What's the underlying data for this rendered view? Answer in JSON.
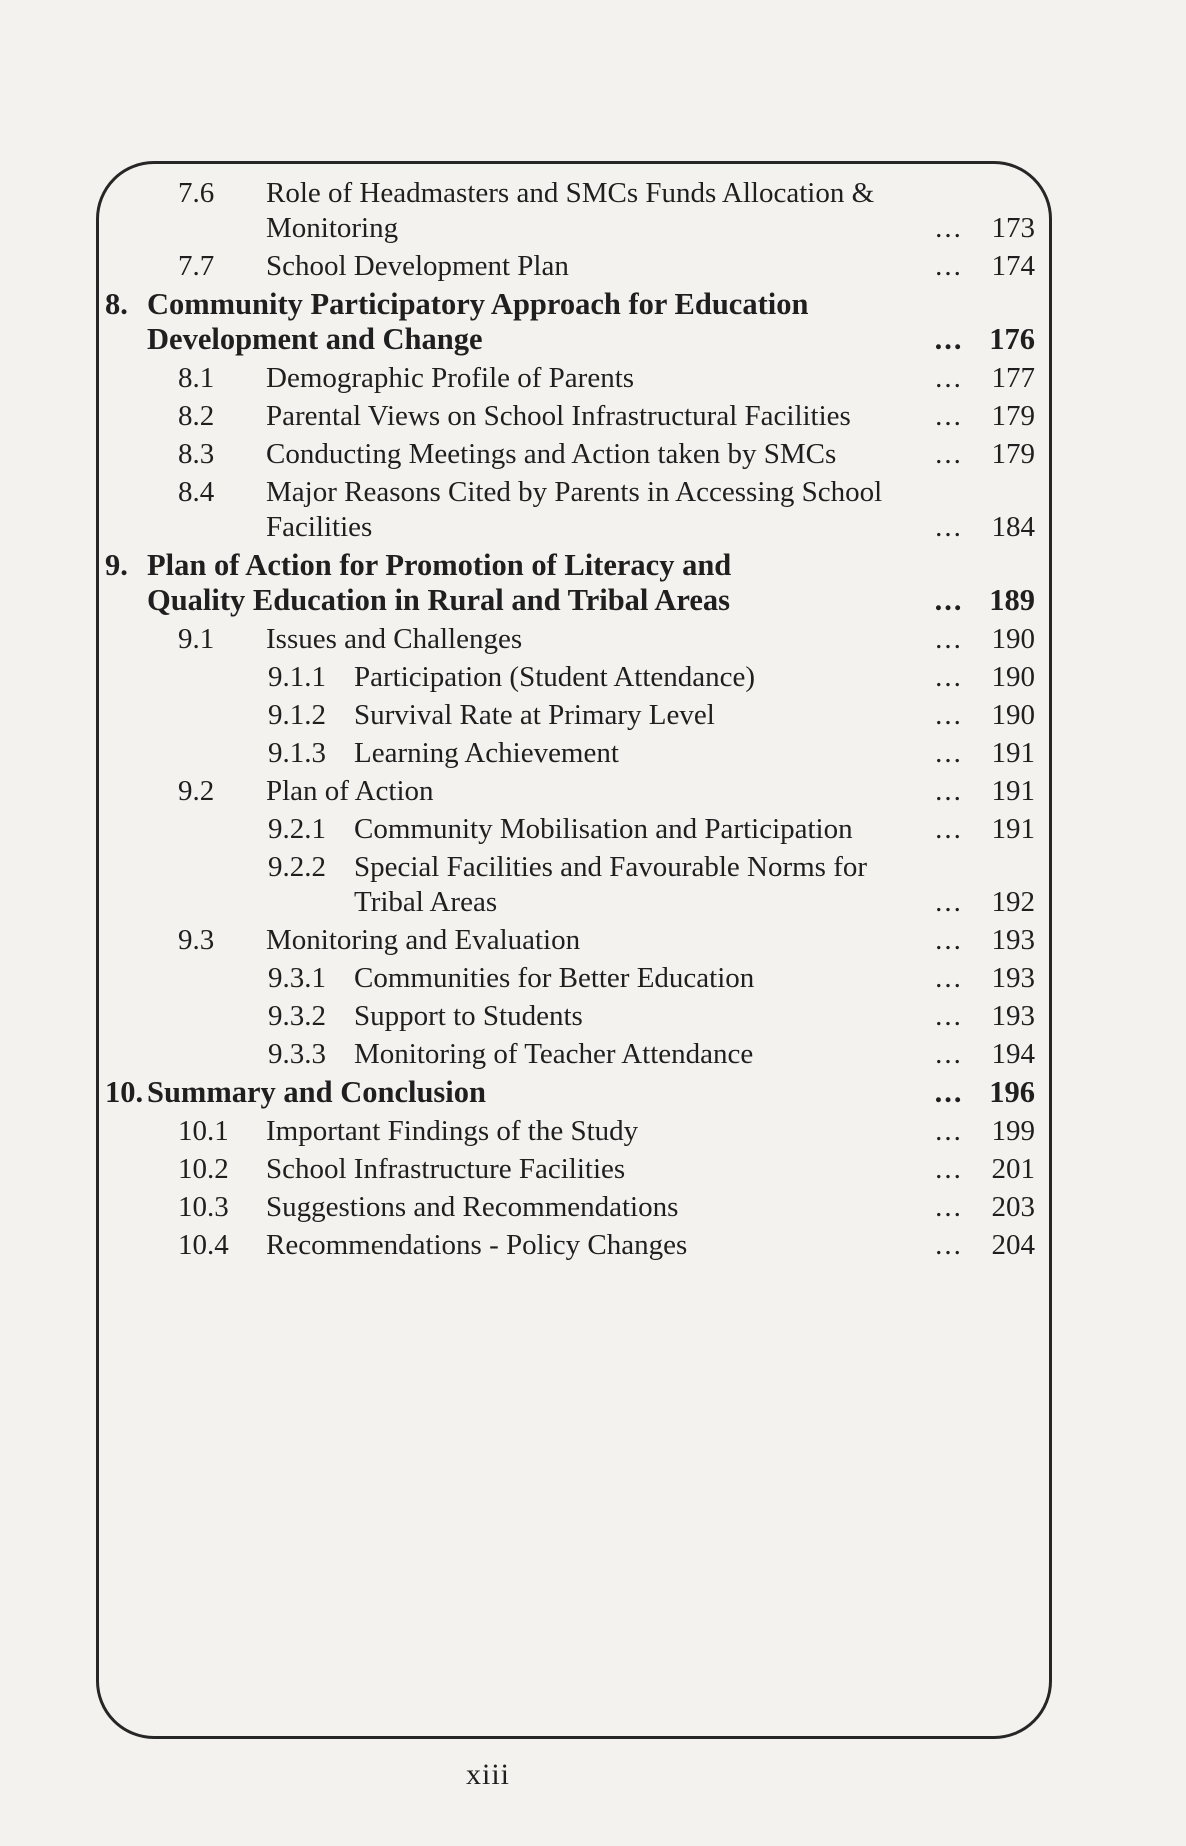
{
  "page": {
    "background": "#f3f2ef",
    "text_color": "#1f1f1f",
    "frame_border_color": "#262626",
    "footer": "xiii"
  },
  "toc": {
    "leader": "...",
    "entries": [
      {
        "level": 2,
        "num": "7.6",
        "bold": false,
        "lines": [
          "Role of Headmasters and SMCs Funds Allocation &",
          "Monitoring"
        ],
        "page": "173"
      },
      {
        "level": 2,
        "num": "7.7",
        "bold": false,
        "lines": [
          "School Development Plan"
        ],
        "page": "174"
      },
      {
        "level": 1,
        "num": "8.",
        "bold": true,
        "lines": [
          "Community Participatory Approach for Education",
          "Development and Change"
        ],
        "page": "176"
      },
      {
        "level": 2,
        "num": "8.1",
        "bold": false,
        "lines": [
          "Demographic Profile of Parents"
        ],
        "page": "177"
      },
      {
        "level": 2,
        "num": "8.2",
        "bold": false,
        "lines": [
          "Parental Views on School Infrastructural Facilities"
        ],
        "page": "179"
      },
      {
        "level": 2,
        "num": "8.3",
        "bold": false,
        "lines": [
          "Conducting Meetings and Action taken by SMCs"
        ],
        "page": "179"
      },
      {
        "level": 2,
        "num": "8.4",
        "bold": false,
        "lines": [
          "Major Reasons Cited by Parents in Accessing School",
          "Facilities"
        ],
        "page": "184"
      },
      {
        "level": 1,
        "num": "9.",
        "bold": true,
        "lines": [
          "Plan of Action for Promotion of Literacy and",
          "Quality Education in Rural and Tribal Areas"
        ],
        "page": "189"
      },
      {
        "level": 2,
        "num": "9.1",
        "bold": false,
        "lines": [
          "Issues and Challenges"
        ],
        "page": "190"
      },
      {
        "level": 3,
        "num": "9.1.1",
        "bold": false,
        "lines": [
          "Participation (Student Attendance)"
        ],
        "page": "190"
      },
      {
        "level": 3,
        "num": "9.1.2",
        "bold": false,
        "lines": [
          "Survival Rate at Primary Level"
        ],
        "page": "190"
      },
      {
        "level": 3,
        "num": "9.1.3",
        "bold": false,
        "lines": [
          "Learning Achievement"
        ],
        "page": "191"
      },
      {
        "level": 2,
        "num": "9.2",
        "bold": false,
        "lines": [
          "Plan of Action"
        ],
        "page": "191"
      },
      {
        "level": 3,
        "num": "9.2.1",
        "bold": false,
        "lines": [
          "Community Mobilisation and Participation"
        ],
        "page": "191"
      },
      {
        "level": 3,
        "num": "9.2.2",
        "bold": false,
        "lines": [
          "Special Facilities and Favourable Norms for",
          "Tribal Areas"
        ],
        "page": "192"
      },
      {
        "level": 2,
        "num": "9.3",
        "bold": false,
        "lines": [
          "Monitoring and Evaluation"
        ],
        "page": "193"
      },
      {
        "level": 3,
        "num": "9.3.1",
        "bold": false,
        "lines": [
          "Communities for Better Education"
        ],
        "page": "193"
      },
      {
        "level": 3,
        "num": "9.3.2",
        "bold": false,
        "lines": [
          "Support to Students"
        ],
        "page": "193"
      },
      {
        "level": 3,
        "num": "9.3.3",
        "bold": false,
        "lines": [
          "Monitoring of Teacher Attendance"
        ],
        "page": "194"
      },
      {
        "level": 1,
        "num": "10.",
        "bold": true,
        "lines": [
          "Summary and Conclusion"
        ],
        "page": "196"
      },
      {
        "level": 2,
        "num": "10.1",
        "bold": false,
        "lines": [
          "Important Findings of the Study"
        ],
        "page": "199"
      },
      {
        "level": 2,
        "num": "10.2",
        "bold": false,
        "lines": [
          "School Infrastructure Facilities"
        ],
        "page": "201"
      },
      {
        "level": 2,
        "num": "10.3",
        "bold": false,
        "lines": [
          "Suggestions and Recommendations"
        ],
        "page": "203"
      },
      {
        "level": 2,
        "num": "10.4",
        "bold": false,
        "lines": [
          "Recommendations - Policy Changes"
        ],
        "page": "204"
      }
    ]
  }
}
